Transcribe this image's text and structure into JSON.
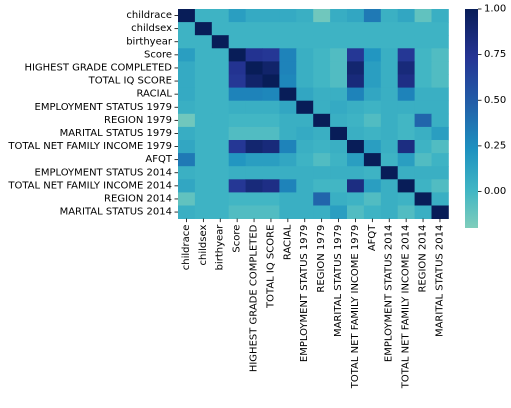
{
  "chart_data": {
    "type": "heatmap",
    "title": "",
    "xlabel": "",
    "ylabel": "",
    "labels": [
      "childrace",
      "childsex",
      "birthyear",
      "Score",
      "HIGHEST GRADE COMPLETED",
      "TOTAL IQ SCORE",
      "RACIAL",
      "EMPLOYMENT STATUS 1979",
      "REGION 1979",
      "MARITAL STATUS 1979",
      "TOTAL NET FAMILY INCOME 1979",
      "AFQT",
      "EMPLOYMENT STATUS 2014",
      "TOTAL NET FAMILY INCOME 2014",
      "REGION 2014",
      "MARITAL STATUS 2014"
    ],
    "values": [
      [
        1.0,
        0.02,
        0.02,
        0.15,
        0.08,
        0.08,
        0.08,
        0.05,
        -0.15,
        0.06,
        0.1,
        0.35,
        0.04,
        0.1,
        -0.1,
        0.05
      ],
      [
        0.02,
        1.0,
        0.02,
        0.02,
        0.02,
        0.02,
        0.02,
        0.02,
        0.02,
        0.02,
        0.02,
        0.02,
        0.02,
        0.02,
        0.02,
        0.02
      ],
      [
        0.02,
        0.02,
        1.0,
        0.02,
        0.02,
        0.02,
        0.02,
        0.02,
        0.02,
        0.02,
        0.02,
        0.02,
        0.02,
        0.02,
        0.02,
        0.02
      ],
      [
        0.15,
        0.02,
        0.02,
        1.0,
        0.75,
        0.72,
        0.3,
        0.05,
        0.0,
        -0.05,
        0.72,
        0.2,
        0.05,
        0.72,
        0.0,
        -0.05
      ],
      [
        0.08,
        0.02,
        0.02,
        0.75,
        1.0,
        0.92,
        0.3,
        0.05,
        0.0,
        -0.05,
        0.9,
        0.15,
        0.05,
        0.85,
        0.0,
        -0.05
      ],
      [
        0.08,
        0.02,
        0.02,
        0.72,
        0.92,
        1.0,
        0.28,
        0.05,
        0.0,
        -0.05,
        0.85,
        0.15,
        0.05,
        0.8,
        0.0,
        -0.05
      ],
      [
        0.08,
        0.02,
        0.02,
        0.3,
        0.3,
        0.28,
        1.0,
        0.1,
        0.05,
        0.05,
        0.3,
        0.1,
        0.05,
        0.3,
        0.05,
        0.05
      ],
      [
        0.05,
        0.02,
        0.02,
        0.05,
        0.05,
        0.05,
        0.1,
        1.0,
        0.05,
        0.08,
        0.05,
        0.02,
        0.05,
        0.05,
        0.05,
        0.05
      ],
      [
        -0.15,
        0.02,
        0.02,
        0.0,
        0.0,
        0.0,
        0.05,
        0.05,
        1.0,
        0.05,
        0.02,
        -0.05,
        0.05,
        0.0,
        0.45,
        0.05
      ],
      [
        0.06,
        0.02,
        0.02,
        -0.05,
        -0.05,
        -0.05,
        0.05,
        0.08,
        0.05,
        1.0,
        0.05,
        0.02,
        0.05,
        0.0,
        0.05,
        0.15
      ],
      [
        0.1,
        0.02,
        0.02,
        0.72,
        0.9,
        0.85,
        0.3,
        0.05,
        0.02,
        0.05,
        1.0,
        0.15,
        0.05,
        0.82,
        0.02,
        -0.05
      ],
      [
        0.35,
        0.02,
        0.02,
        0.2,
        0.15,
        0.15,
        0.1,
        0.02,
        -0.05,
        0.02,
        0.15,
        1.0,
        0.02,
        0.15,
        -0.05,
        0.02
      ],
      [
        0.04,
        0.02,
        0.02,
        0.05,
        0.05,
        0.05,
        0.05,
        0.05,
        0.05,
        0.05,
        0.05,
        0.02,
        1.0,
        0.05,
        0.05,
        0.05
      ],
      [
        0.1,
        0.02,
        0.02,
        0.72,
        0.85,
        0.8,
        0.3,
        0.05,
        0.0,
        0.0,
        0.82,
        0.15,
        0.05,
        1.0,
        0.02,
        -0.05
      ],
      [
        -0.1,
        0.02,
        0.02,
        0.0,
        0.0,
        0.0,
        0.05,
        0.05,
        0.45,
        0.05,
        0.02,
        -0.05,
        0.05,
        0.02,
        1.0,
        0.05
      ],
      [
        0.05,
        0.02,
        0.02,
        -0.05,
        -0.05,
        -0.05,
        0.05,
        0.05,
        0.05,
        0.15,
        -0.05,
        0.02,
        0.05,
        -0.05,
        0.05,
        1.0
      ]
    ],
    "vmin": -0.2,
    "vmax": 1.0,
    "colormap": "YlGnBu",
    "colorbar": {
      "ticks": [
        1.0,
        0.75,
        0.5,
        0.25,
        0.0
      ],
      "tick_labels": [
        "1.00",
        "0.75",
        "0.50",
        "0.25",
        "0.00"
      ]
    }
  }
}
